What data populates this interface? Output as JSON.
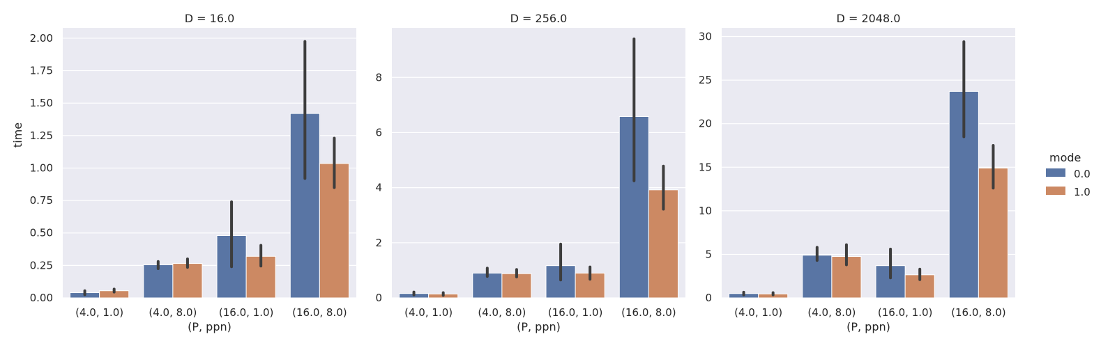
{
  "chart_data": [
    {
      "type": "bar",
      "title": "D = 16.0",
      "xlabel": "(P, ppn)",
      "ylabel": "time",
      "categories": [
        "(4.0, 1.0)",
        "(4.0, 8.0)",
        "(16.0, 1.0)",
        "(16.0, 8.0)"
      ],
      "ylim": [
        0,
        2.08
      ],
      "yticks": [
        "0.00",
        "0.25",
        "0.50",
        "0.75",
        "1.00",
        "1.25",
        "1.50",
        "1.75",
        "2.00"
      ],
      "series": [
        {
          "name": "0.0",
          "values": [
            0.04,
            0.255,
            0.48,
            1.42
          ],
          "ci_low": [
            0.025,
            0.225,
            0.24,
            0.92
          ],
          "ci_high": [
            0.055,
            0.28,
            0.74,
            1.975
          ]
        },
        {
          "name": "1.0",
          "values": [
            0.055,
            0.265,
            0.32,
            1.035
          ],
          "ci_low": [
            0.045,
            0.235,
            0.245,
            0.85
          ],
          "ci_high": [
            0.068,
            0.3,
            0.405,
            1.23
          ]
        }
      ],
      "grid": true
    },
    {
      "type": "bar",
      "title": "D = 256.0",
      "xlabel": "(P, ppn)",
      "ylabel": "",
      "categories": [
        "(4.0, 1.0)",
        "(4.0, 8.0)",
        "(16.0, 1.0)",
        "(16.0, 8.0)"
      ],
      "ylim": [
        0,
        9.8
      ],
      "yticks": [
        "0",
        "2",
        "4",
        "6",
        "8"
      ],
      "series": [
        {
          "name": "0.0",
          "values": [
            0.16,
            0.9,
            1.17,
            6.58
          ],
          "ci_low": [
            0.11,
            0.78,
            0.65,
            4.25
          ],
          "ci_high": [
            0.21,
            1.08,
            1.95,
            9.4
          ]
        },
        {
          "name": "1.0",
          "values": [
            0.14,
            0.88,
            0.9,
            3.92
          ],
          "ci_low": [
            0.09,
            0.76,
            0.68,
            3.22
          ],
          "ci_high": [
            0.19,
            1.03,
            1.12,
            4.78
          ]
        }
      ],
      "grid": true
    },
    {
      "type": "bar",
      "title": "D = 2048.0",
      "xlabel": "(P, ppn)",
      "ylabel": "",
      "categories": [
        "(4.0, 1.0)",
        "(4.0, 8.0)",
        "(16.0, 1.0)",
        "(16.0, 8.0)"
      ],
      "ylim": [
        0,
        31
      ],
      "yticks": [
        "0",
        "5",
        "10",
        "15",
        "20",
        "25",
        "30"
      ],
      "series": [
        {
          "name": "0.0",
          "values": [
            0.5,
            4.9,
            3.7,
            23.7
          ],
          "ci_low": [
            0.35,
            4.3,
            2.3,
            18.5
          ],
          "ci_high": [
            0.65,
            5.8,
            5.6,
            29.4
          ]
        },
        {
          "name": "1.0",
          "values": [
            0.45,
            4.75,
            2.65,
            14.9
          ],
          "ci_low": [
            0.35,
            3.8,
            2.1,
            12.6
          ],
          "ci_high": [
            0.6,
            6.1,
            3.3,
            17.5
          ]
        }
      ],
      "grid": true
    }
  ],
  "legend": {
    "title": "mode",
    "placement": "right",
    "items": [
      {
        "label": "0.0",
        "color": "#5975a4"
      },
      {
        "label": "1.0",
        "color": "#cc8963"
      }
    ]
  },
  "colors": {
    "background": "#eaeaf2",
    "grid": "#ffffff",
    "series": [
      "#5975a4",
      "#cc8963"
    ],
    "errorbar": "#3d3d3d"
  }
}
